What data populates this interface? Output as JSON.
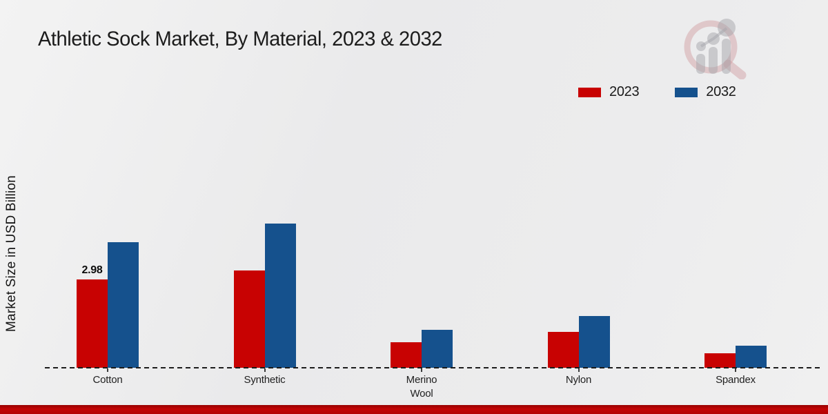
{
  "title": "Athletic Sock Market, By Material, 2023 & 2032",
  "y_axis_label": "Market Size in USD Billion",
  "legend": {
    "position": "top-right",
    "items": [
      {
        "label": "2023",
        "color": "#c80202"
      },
      {
        "label": "2032",
        "color": "#15518d"
      }
    ]
  },
  "watermark_icon": "magnifier-bar-chart-logo",
  "colors": {
    "series_2023": "#c80202",
    "series_2032": "#15518d",
    "background": "#ececed",
    "bottom_strip": "#b80303",
    "baseline": "#1b1b1b"
  },
  "chart_data": {
    "type": "bar",
    "title": "Athletic Sock Market, By Material, 2023 & 2032",
    "ylabel": "Market Size in USD Billion",
    "xlabel": "",
    "categories": [
      "Cotton",
      "Synthetic",
      "Merino Wool",
      "Nylon",
      "Spandex"
    ],
    "series": [
      {
        "name": "2023",
        "color": "#c80202",
        "values": [
          2.98,
          3.28,
          0.85,
          1.2,
          0.49
        ]
      },
      {
        "name": "2032",
        "color": "#15518d",
        "values": [
          4.24,
          4.87,
          1.28,
          1.74,
          0.74
        ]
      }
    ],
    "data_labels": [
      {
        "series": "2023",
        "category": "Cotton",
        "text": "2.98"
      }
    ],
    "grid": false,
    "legend_position": "top-right",
    "baseline_style": "dashed",
    "y_axis_ticks_visible": false
  }
}
